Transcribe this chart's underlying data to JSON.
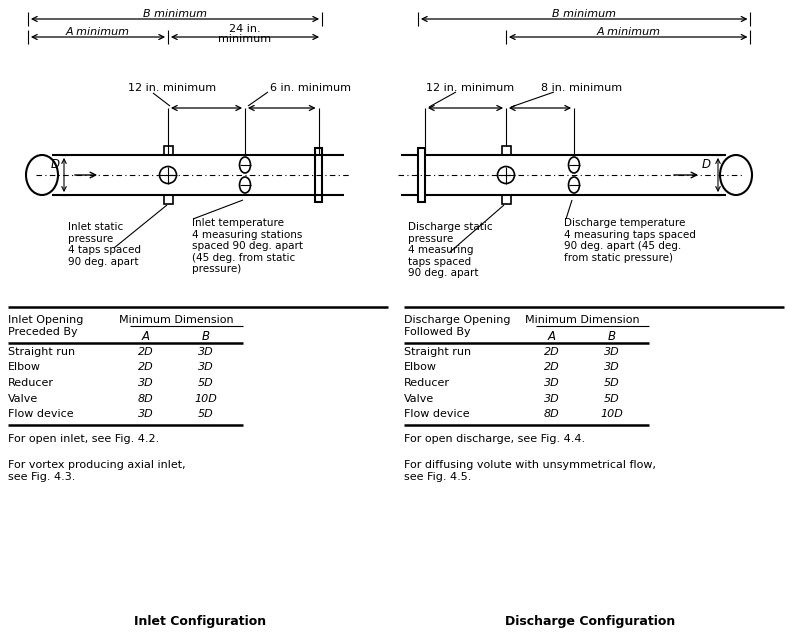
{
  "left_table": {
    "rows": [
      [
        "Straight run",
        "2D",
        "3D"
      ],
      [
        "Elbow",
        "2D",
        "3D"
      ],
      [
        "Reducer",
        "3D",
        "5D"
      ],
      [
        "Valve",
        "8D",
        "10D"
      ],
      [
        "Flow device",
        "3D",
        "5D"
      ]
    ],
    "notes": [
      "For open inlet, see Fig. 4.2.",
      "For vortex producing axial inlet,\nsee Fig. 4.3."
    ]
  },
  "right_table": {
    "rows": [
      [
        "Straight run",
        "2D",
        "3D"
      ],
      [
        "Elbow",
        "2D",
        "3D"
      ],
      [
        "Reducer",
        "3D",
        "5D"
      ],
      [
        "Valve",
        "3D",
        "5D"
      ],
      [
        "Flow device",
        "8D",
        "10D"
      ]
    ],
    "notes": [
      "For open discharge, see Fig. 4.4.",
      "For diffusing volute with unsymmetrical flow,\nsee Fig. 4.5."
    ]
  }
}
